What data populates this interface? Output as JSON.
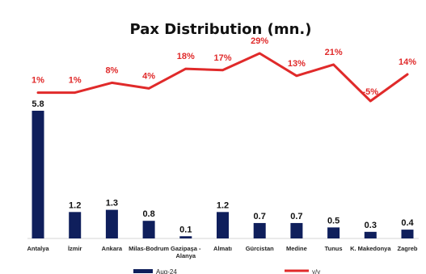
{
  "chart_data": {
    "type": "bar",
    "title": "Pax Distribution (mn.)",
    "categories": [
      [
        "Antalya"
      ],
      [
        "İzmir"
      ],
      [
        "Ankara"
      ],
      [
        "Milas-Bodrum"
      ],
      [
        "Gazipaşa -",
        "Alanya"
      ],
      [
        "Almatı"
      ],
      [
        "Gürcistan"
      ],
      [
        "Medine"
      ],
      [
        "Tunus"
      ],
      [
        "K. Makedonya"
      ],
      [
        "Zagreb"
      ]
    ],
    "series": [
      {
        "name": "Aug-24",
        "type": "bar",
        "color": "#0f1f5c",
        "values": [
          5.8,
          1.2,
          1.3,
          0.8,
          0.1,
          1.2,
          0.7,
          0.7,
          0.5,
          0.3,
          0.4
        ],
        "labels": [
          "5.8",
          "1.2",
          "1.3",
          "0.8",
          "0.1",
          "1.2",
          "0.7",
          "0.7",
          "0.5",
          "0.3",
          "0.4"
        ]
      },
      {
        "name": "y/y",
        "type": "line",
        "color": "#e02a2a",
        "values": [
          1,
          1,
          8,
          4,
          18,
          17,
          29,
          13,
          21,
          -5,
          14
        ],
        "labels": [
          "1%",
          "1%",
          "8%",
          "4%",
          "18%",
          "17%",
          "29%",
          "13%",
          "21%",
          "-5%",
          "14%"
        ]
      }
    ],
    "ylim_bars": [
      0,
      6
    ],
    "ylim_line": [
      -5,
      29
    ],
    "grid": false,
    "legend_position": "bottom"
  }
}
